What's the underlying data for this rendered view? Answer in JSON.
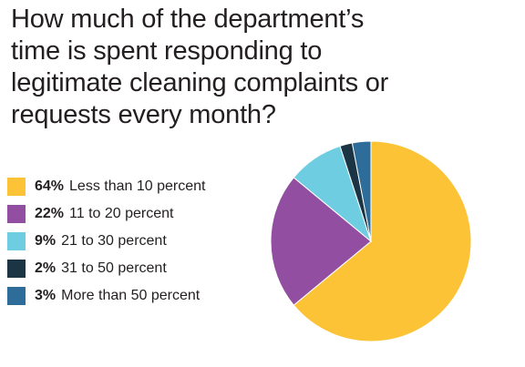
{
  "chart_data": {
    "type": "pie",
    "title": "How much of the department’s time is spent responding to legitimate cleaning complaints or requests every month?",
    "slices": [
      {
        "percent_label": "64%",
        "label": "Less than 10 percent",
        "value": 64,
        "color": "#fcc336"
      },
      {
        "percent_label": "22%",
        "label": "11 to 20 percent",
        "value": 22,
        "color": "#924ea1"
      },
      {
        "percent_label": "9%",
        "label": "21 to 30 percent",
        "value": 9,
        "color": "#6ecde0"
      },
      {
        "percent_label": "2%",
        "label": "31 to 50 percent",
        "value": 2,
        "color": "#1b3545"
      },
      {
        "percent_label": "3%",
        "label": "More than 50 percent",
        "value": 3,
        "color": "#2e6c9a"
      }
    ],
    "legend_position": "left"
  }
}
